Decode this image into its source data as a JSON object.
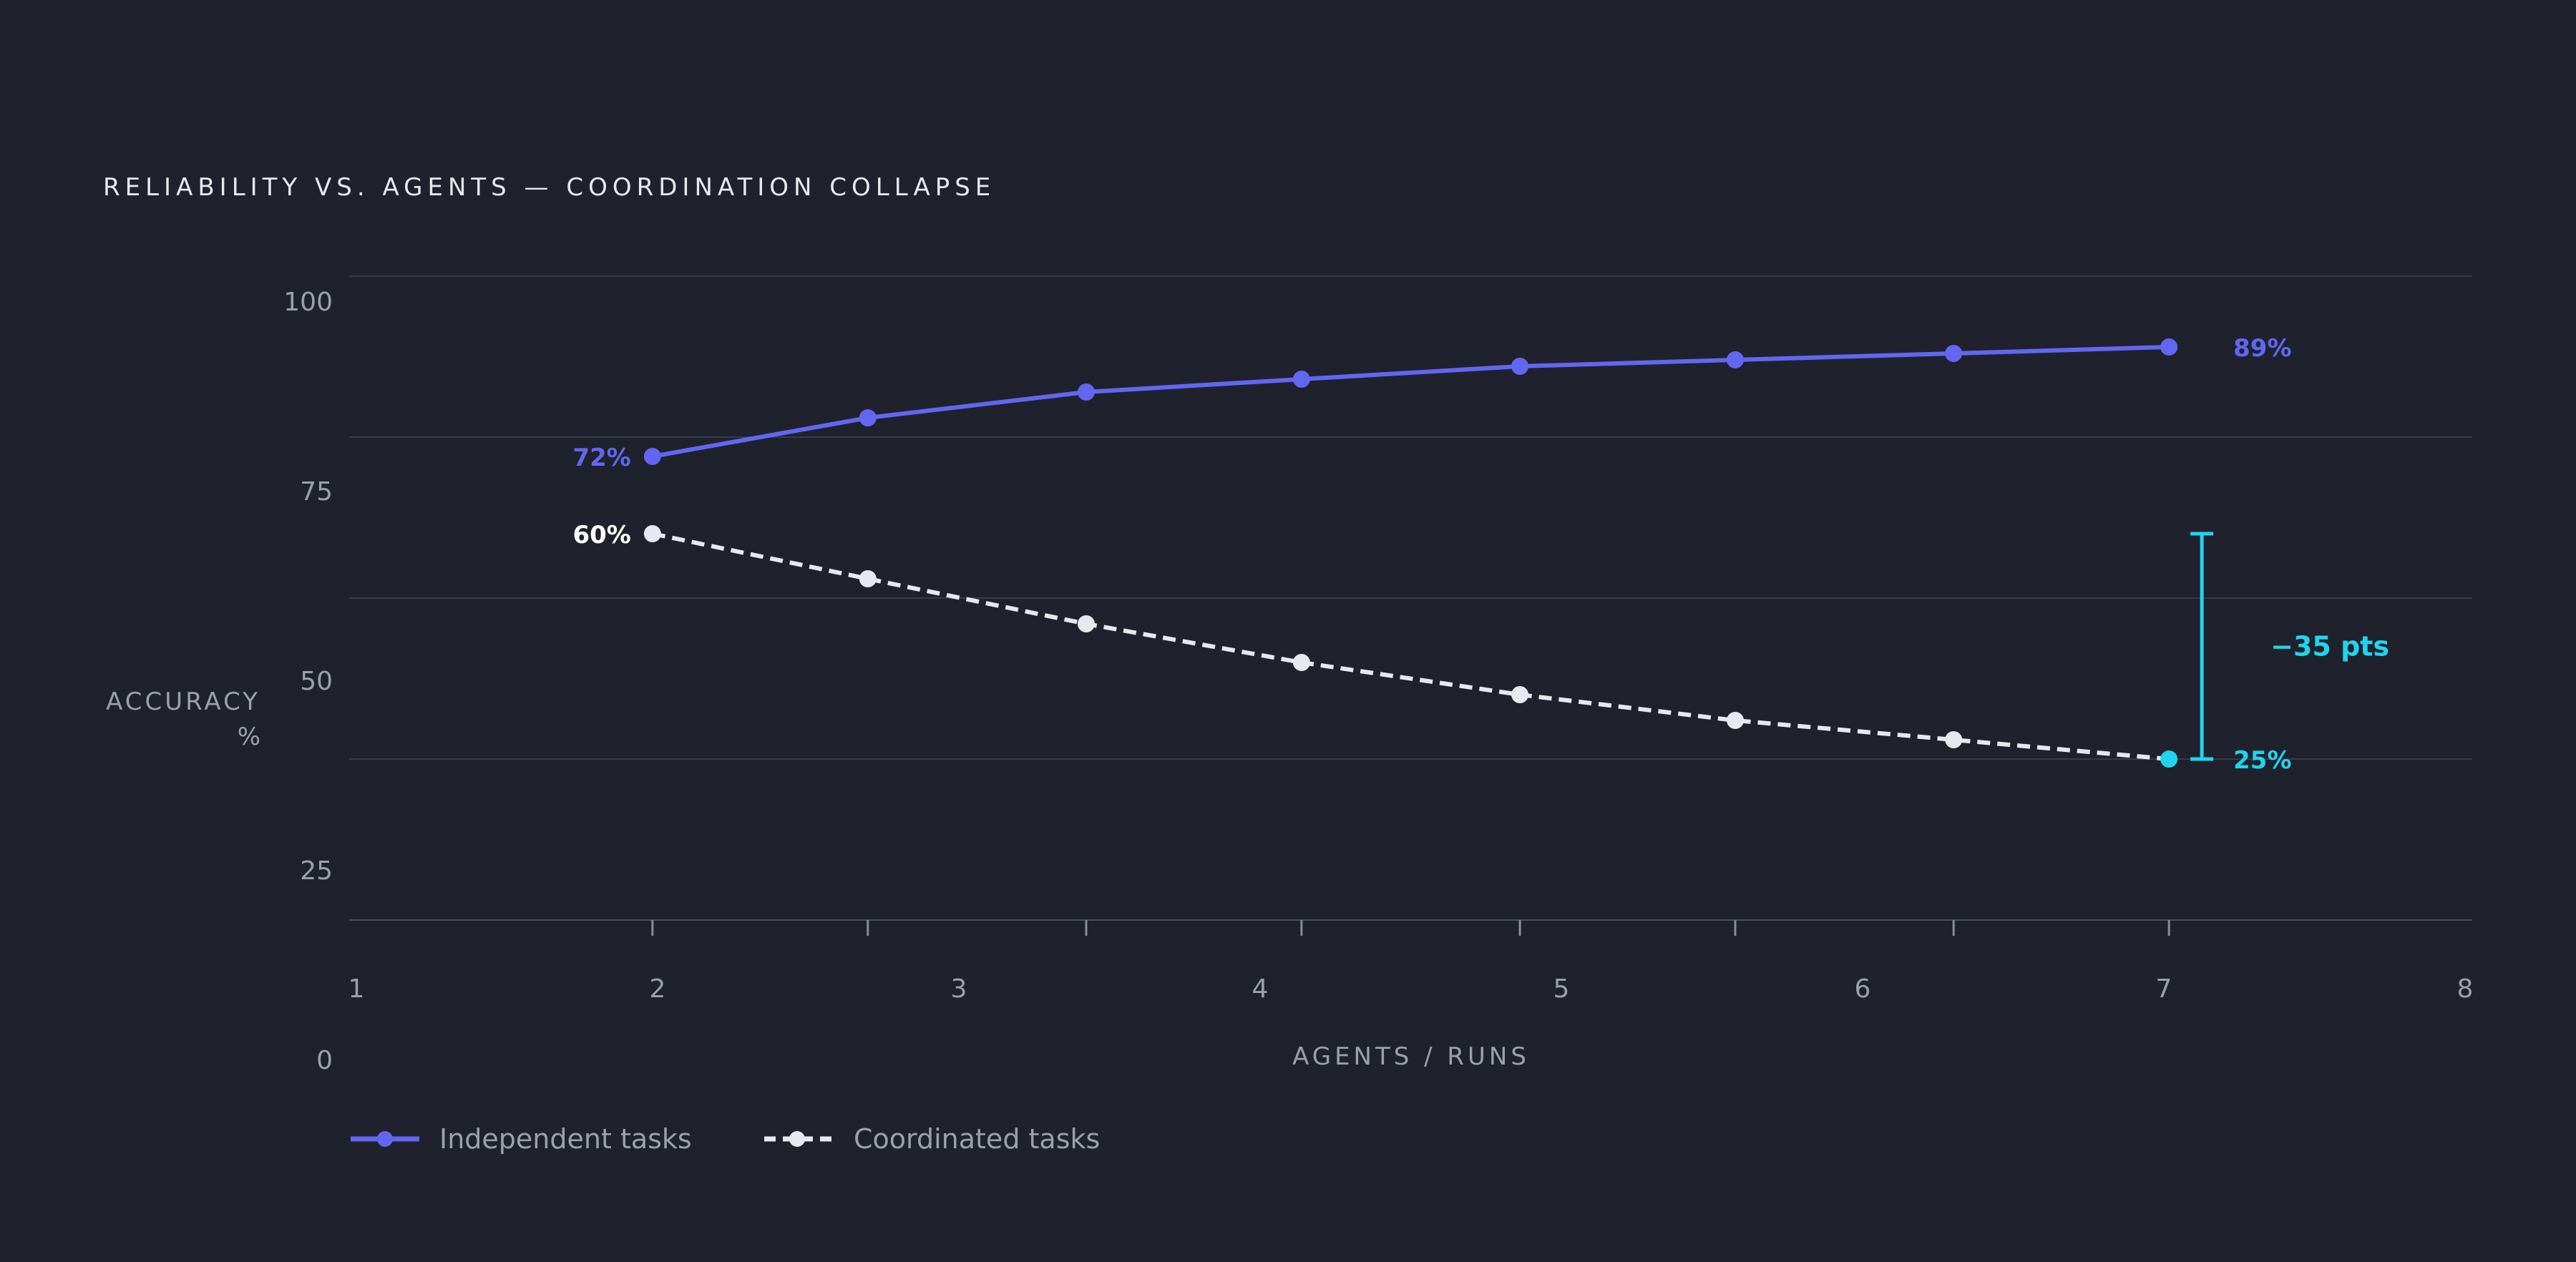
{
  "chart_data": {
    "type": "line",
    "title": "RELIABILITY VS. AGENTS — COORDINATION COLLAPSE",
    "xlabel": "AGENTS / RUNS",
    "ylabel_line1": "ACCURACY",
    "ylabel_line2": "%",
    "xlim": [
      1,
      8
    ],
    "ylim": [
      0,
      100
    ],
    "x_ticks": [
      "1",
      "2",
      "3",
      "4",
      "5",
      "6",
      "7",
      "8"
    ],
    "y_ticks": [
      "100",
      "75",
      "50",
      "25",
      "0"
    ],
    "grid": true,
    "legend_position": "bottom-left",
    "series": [
      {
        "name": "Independent tasks",
        "color": "#6366f1",
        "style": "solid",
        "x": [
          2,
          2.71,
          3.43,
          4.14,
          4.86,
          5.57,
          6.29,
          7
        ],
        "values": [
          72,
          78,
          82,
          84,
          86,
          87,
          88,
          89
        ]
      },
      {
        "name": "Coordinated tasks",
        "color": "#e8e8ee",
        "style": "dashed",
        "x": [
          2,
          2.71,
          3.43,
          4.14,
          4.86,
          5.57,
          6.29,
          7
        ],
        "values": [
          60,
          53,
          46,
          40,
          35,
          31,
          28,
          25
        ]
      }
    ],
    "annotations": {
      "independent_start": "72%",
      "coordinated_start": "60%",
      "independent_end": "89%",
      "coordinated_end": "25%",
      "gap": "−35 pts",
      "accent_color": "#22d3ee"
    }
  }
}
